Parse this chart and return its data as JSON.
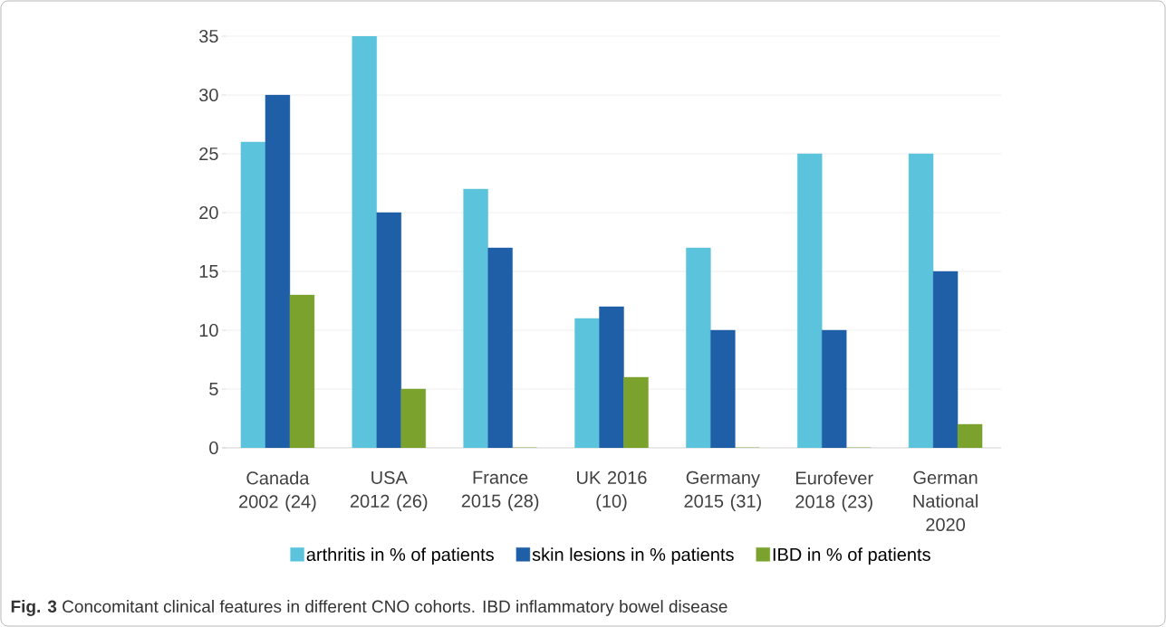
{
  "chart_data": {
    "type": "bar",
    "categories": [
      "Canada 2002 (24)",
      "USA 2012 (26)",
      "France 2015 (28)",
      "UK 2016 (10)",
      "Germany 2015 (31)",
      "Eurofever 2018 (23)",
      "German National 2020"
    ],
    "series": [
      {
        "name": "arthritis in % of patients",
        "color": "#5bc4dc",
        "values": [
          26,
          35,
          22,
          11,
          17,
          25,
          25
        ]
      },
      {
        "name": "skin lesions in % patients",
        "color": "#1f5fa8",
        "values": [
          30,
          20,
          17,
          12,
          10,
          10,
          15
        ]
      },
      {
        "name": "IBD in % of patients",
        "color": "#7aa22c",
        "values": [
          13,
          5,
          0,
          6,
          0,
          0,
          2
        ]
      }
    ],
    "ylim": [
      0,
      35
    ],
    "yticks": [
      0,
      5,
      10,
      15,
      20,
      25,
      30,
      35
    ],
    "grid": "y",
    "legend": "bottom",
    "annotations": [
      "**Fig. 3** Concomitant clinical features in different CNO cohorts. IBD inflammatory bowel disease"
    ]
  }
}
